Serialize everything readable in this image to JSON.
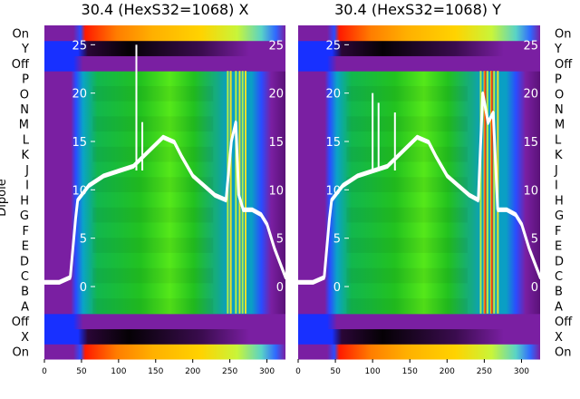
{
  "chart_data": [
    {
      "type": "heatmap",
      "title": "30.4 (HexS32=1068) X",
      "ylabel": "Dipole",
      "x_ticks": [
        0,
        50,
        100,
        150,
        200,
        250,
        300
      ],
      "xlim": [
        0,
        325
      ],
      "overlay_y_ticks": [
        0,
        5,
        10,
        15,
        20,
        25
      ],
      "overlay_ylim": [
        -7.5,
        27
      ],
      "row_labels": [
        "On",
        "X",
        "Off",
        "A",
        "B",
        "C",
        "D",
        "E",
        "F",
        "G",
        "H",
        "I",
        "J",
        "K",
        "L",
        "M",
        "N",
        "O",
        "P",
        "Off",
        "Y",
        "On"
      ],
      "overlay_line": {
        "x": [
          0,
          20,
          35,
          42,
          45,
          50,
          60,
          80,
          100,
          120,
          140,
          160,
          175,
          185,
          200,
          215,
          230,
          245,
          252,
          258,
          262,
          268,
          280,
          292,
          300,
          310,
          320,
          325
        ],
        "y": [
          0.5,
          0.5,
          1,
          7,
          9,
          9.5,
          10.5,
          11.5,
          12,
          12.5,
          14,
          15.5,
          15,
          13.5,
          11.5,
          10.5,
          9.5,
          9,
          15,
          17,
          9.5,
          8,
          8,
          7.5,
          6.5,
          4,
          2,
          1
        ]
      },
      "overlay_spikes": [
        {
          "x": 124,
          "y": 25
        },
        {
          "x": 132,
          "y": 17
        }
      ]
    },
    {
      "type": "heatmap",
      "title": "30.4 (HexS32=1068) Y",
      "ylabel": "",
      "x_ticks": [
        0,
        50,
        100,
        150,
        200,
        250,
        300
      ],
      "xlim": [
        0,
        325
      ],
      "overlay_y_ticks": [
        0,
        5,
        10,
        15,
        20,
        25
      ],
      "overlay_ylim": [
        -7.5,
        27
      ],
      "row_labels": [
        "On",
        "X",
        "Off",
        "A",
        "B",
        "C",
        "D",
        "E",
        "F",
        "G",
        "H",
        "I",
        "J",
        "K",
        "L",
        "M",
        "N",
        "O",
        "P",
        "Off",
        "Y",
        "On"
      ],
      "overlay_line": {
        "x": [
          0,
          20,
          35,
          42,
          45,
          50,
          60,
          80,
          100,
          120,
          140,
          160,
          175,
          185,
          200,
          215,
          230,
          242,
          248,
          255,
          262,
          268,
          280,
          292,
          300,
          310,
          320,
          325
        ],
        "y": [
          0.5,
          0.5,
          1,
          7,
          9,
          9.5,
          10.5,
          11.5,
          12,
          12.5,
          14,
          15.5,
          15,
          13.5,
          11.5,
          10.5,
          9.5,
          9,
          20,
          17,
          18,
          8,
          8,
          7.5,
          6.5,
          4,
          2,
          1
        ]
      },
      "overlay_spikes": [
        {
          "x": 100,
          "y": 20
        },
        {
          "x": 108,
          "y": 19
        },
        {
          "x": 130,
          "y": 18
        }
      ]
    }
  ],
  "colors": {
    "violet": "#7a1fa2",
    "blue": "#1f3cff",
    "black": "#000000",
    "cyan": "#0aa3c8",
    "green": "#22c21f",
    "lime": "#8cf21a",
    "yellow": "#ffe81a",
    "orange": "#ff9800",
    "red": "#ff1a00",
    "line": "#ffffff"
  }
}
